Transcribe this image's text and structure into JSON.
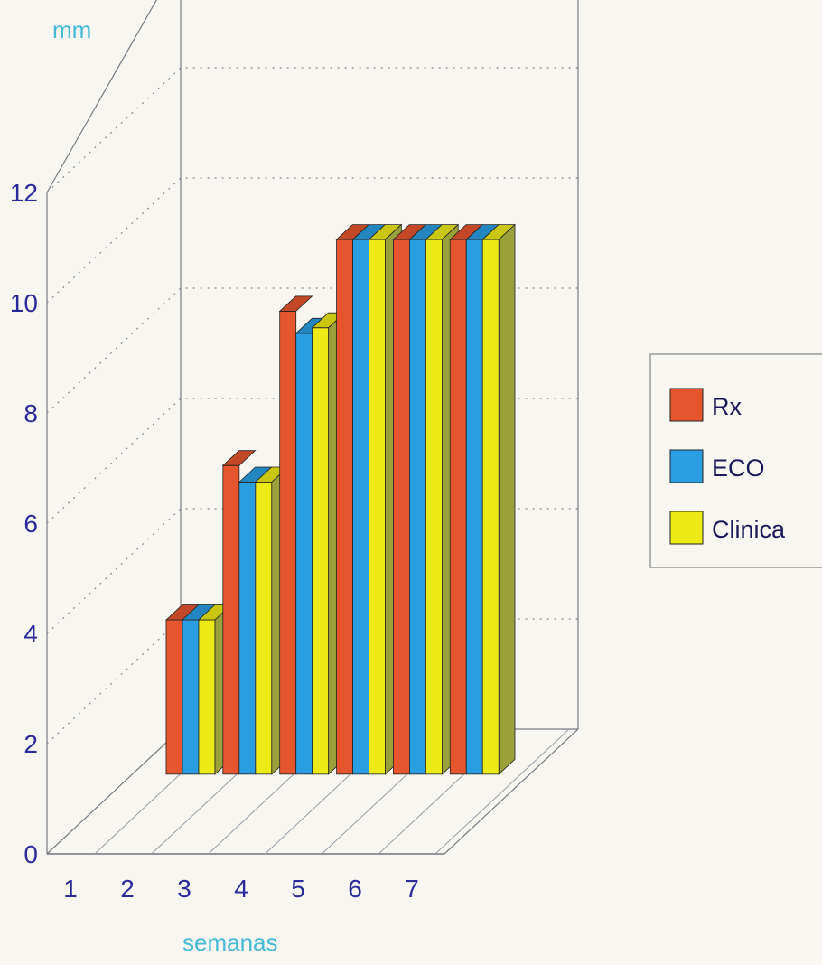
{
  "chart_data": {
    "type": "bar",
    "projection": "3d",
    "title": "",
    "ylabel": "mm",
    "xlabel": "semanas",
    "categories": [
      "1",
      "2",
      "3",
      "4",
      "5",
      "6",
      "7"
    ],
    "ylim": [
      0,
      12
    ],
    "yticks": [
      "0",
      "2",
      "4",
      "6",
      "8",
      "10",
      "12"
    ],
    "grid": "dotted",
    "legend_position": "right",
    "series": [
      {
        "name": "Rx",
        "color": "#e5552e",
        "values": [
          0,
          2.8,
          5.6,
          8.4,
          9.7,
          9.7,
          9.7
        ]
      },
      {
        "name": "ECO",
        "color": "#2a9ee0",
        "values": [
          0,
          2.8,
          5.3,
          8.0,
          9.7,
          9.7,
          9.7
        ]
      },
      {
        "name": "Clinica",
        "color": "#ecea17",
        "values": [
          0,
          2.8,
          5.3,
          8.1,
          9.7,
          9.7,
          9.7
        ]
      }
    ],
    "label_color": "#2a2a9a",
    "axis_title_color": "#46b9d4"
  }
}
